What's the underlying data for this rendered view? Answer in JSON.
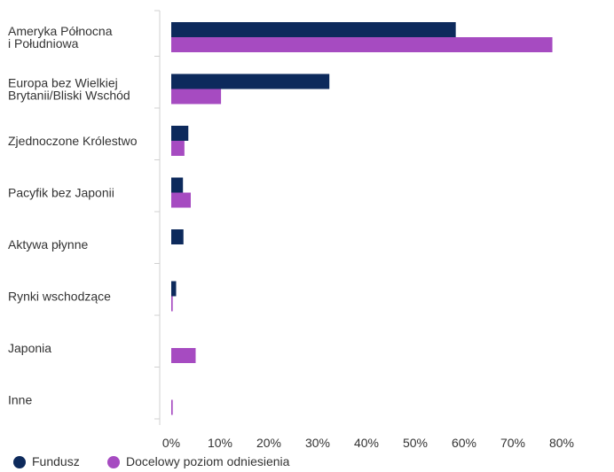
{
  "chart_data": {
    "type": "bar",
    "orientation": "horizontal",
    "categories": [
      [
        "Ameryka Północna",
        "i Południowa"
      ],
      [
        "Europa bez Wielkiej",
        "Brytanii/Bliski Wschód"
      ],
      [
        "Zjednoczone Królestwo"
      ],
      [
        "Pacyfik bez Japonii"
      ],
      [
        "Aktywa płynne"
      ],
      [
        "Rynki wschodzące"
      ],
      [
        "Japonia"
      ],
      [
        "Inne"
      ]
    ],
    "series": [
      {
        "name": "Fundusz",
        "color": "#0d2a5c",
        "values": [
          58.3,
          32.4,
          3.5,
          2.4,
          2.5,
          1.0,
          0.0,
          0.0
        ]
      },
      {
        "name": "Docelowy poziom odniesienia",
        "color": "#a64bc1",
        "values": [
          78.1,
          10.2,
          2.7,
          4.0,
          0.0,
          0.3,
          5.0,
          0.3
        ]
      }
    ],
    "x_ticks": [
      "0%",
      "10%",
      "20%",
      "30%",
      "40%",
      "50%",
      "60%",
      "70%",
      "80%"
    ],
    "xlim": [
      0,
      90
    ],
    "grid": false,
    "legend_position": "bottom-left"
  }
}
